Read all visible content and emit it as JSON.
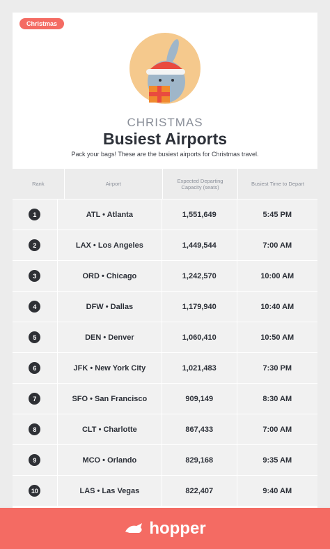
{
  "header": {
    "tag": "Christmas",
    "subtitle": "CHRISTMAS",
    "title": "Busiest Airports",
    "description": "Pack your bags! These are the busiest airports for Christmas travel."
  },
  "table": {
    "columns": [
      "Rank",
      "Airport",
      "Expected Departing Capacity (seats)",
      "Busiest Time to Depart"
    ],
    "rows": [
      [
        "1",
        "ATL • Atlanta",
        "1,551,649",
        "5:45 PM"
      ],
      [
        "2",
        "LAX • Los Angeles",
        "1,449,544",
        "7:00 AM"
      ],
      [
        "3",
        "ORD • Chicago",
        "1,242,570",
        "10:00 AM"
      ],
      [
        "4",
        "DFW • Dallas",
        "1,179,940",
        "10:40 AM"
      ],
      [
        "5",
        "DEN • Denver",
        "1,060,410",
        "10:50 AM"
      ],
      [
        "6",
        "JFK • New York City",
        "1,021,483",
        "7:30 PM"
      ],
      [
        "7",
        "SFO • San Francisco",
        "909,149",
        "8:30 AM"
      ],
      [
        "8",
        "CLT • Charlotte",
        "867,433",
        "7:00 AM"
      ],
      [
        "9",
        "MCO • Orlando",
        "829,168",
        "9:35 AM"
      ],
      [
        "10",
        "LAS • Las Vegas",
        "822,407",
        "9:40 AM"
      ]
    ]
  },
  "footer": {
    "brand": "hopper"
  }
}
